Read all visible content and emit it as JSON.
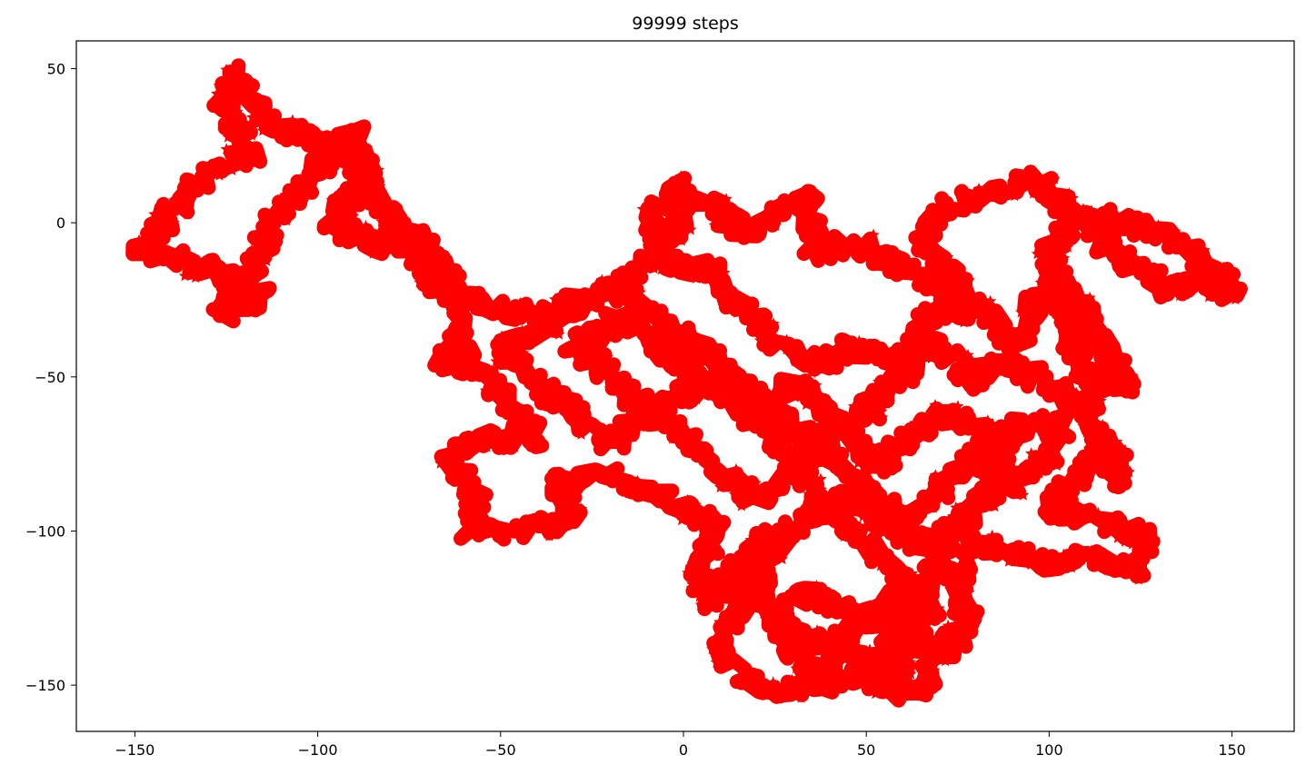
{
  "chart_data": {
    "type": "scatter",
    "title": "99999 steps",
    "xlabel": "",
    "ylabel": "",
    "xlim": [
      -166,
      167
    ],
    "ylim": [
      -165,
      59
    ],
    "xticks": [
      -150,
      -100,
      -50,
      0,
      50,
      100,
      150
    ],
    "yticks": [
      50,
      0,
      -50,
      -100,
      -150
    ],
    "xtick_labels": [
      "−150",
      "−100",
      "−50",
      "0",
      "50",
      "100",
      "150"
    ],
    "ytick_labels": [
      "50",
      "0",
      "−50",
      "−100",
      "−150"
    ],
    "marker": "*",
    "color": "#ff0000",
    "grid": false,
    "legend": "none",
    "series": [
      {
        "steps": 99999,
        "start": [
          0,
          0
        ],
        "path_waypoints": [
          [
            0,
            0
          ],
          [
            -10,
            -12
          ],
          [
            -22,
            -25
          ],
          [
            -38,
            -30
          ],
          [
            -52,
            -28
          ],
          [
            -66,
            -22
          ],
          [
            -74,
            -10
          ],
          [
            -82,
            6
          ],
          [
            -90,
            20
          ],
          [
            -100,
            28
          ],
          [
            -110,
            30
          ],
          [
            -116,
            38
          ],
          [
            -124,
            48
          ],
          [
            -126,
            36
          ],
          [
            -118,
            22
          ],
          [
            -130,
            18
          ],
          [
            -136,
            8
          ],
          [
            -148,
            -8
          ],
          [
            -136,
            -12
          ],
          [
            -124,
            -18
          ],
          [
            -116,
            -24
          ],
          [
            -126,
            -30
          ],
          [
            -120,
            -20
          ],
          [
            -110,
            4
          ],
          [
            -100,
            18
          ],
          [
            -90,
            30
          ],
          [
            -86,
            14
          ],
          [
            -96,
            0
          ],
          [
            -84,
            -8
          ],
          [
            -74,
            -2
          ],
          [
            -64,
            -18
          ],
          [
            -60,
            -40
          ],
          [
            -66,
            -44
          ],
          [
            -54,
            -48
          ],
          [
            -48,
            -60
          ],
          [
            -40,
            -70
          ],
          [
            -58,
            -70
          ],
          [
            -64,
            -78
          ],
          [
            -56,
            -88
          ],
          [
            -58,
            -100
          ],
          [
            -44,
            -100
          ],
          [
            -30,
            -96
          ],
          [
            -34,
            -84
          ],
          [
            -20,
            -82
          ],
          [
            -10,
            -86
          ],
          [
            -2,
            -92
          ],
          [
            10,
            -98
          ],
          [
            4,
            -112
          ],
          [
            8,
            -124
          ],
          [
            16,
            -110
          ],
          [
            24,
            -100
          ],
          [
            10,
            -140
          ],
          [
            20,
            -152
          ],
          [
            34,
            -150
          ],
          [
            44,
            -138
          ],
          [
            54,
            -150
          ],
          [
            62,
            -154
          ],
          [
            70,
            -140
          ],
          [
            78,
            -130
          ],
          [
            74,
            -116
          ],
          [
            80,
            -104
          ],
          [
            92,
            -106
          ],
          [
            102,
            -112
          ],
          [
            112,
            -108
          ],
          [
            124,
            -112
          ],
          [
            126,
            -102
          ],
          [
            112,
            -96
          ],
          [
            100,
            -92
          ],
          [
            110,
            -80
          ],
          [
            118,
            -72
          ],
          [
            120,
            -86
          ],
          [
            110,
            -60
          ],
          [
            96,
            -50
          ],
          [
            86,
            -44
          ],
          [
            80,
            -52
          ],
          [
            70,
            -40
          ],
          [
            58,
            -44
          ],
          [
            46,
            -40
          ],
          [
            38,
            -46
          ],
          [
            26,
            -40
          ],
          [
            18,
            -30
          ],
          [
            8,
            -16
          ],
          [
            -6,
            -12
          ],
          [
            -8,
            2
          ],
          [
            -2,
            12
          ],
          [
            2,
            8
          ],
          [
            10,
            4
          ],
          [
            18,
            -4
          ],
          [
            26,
            4
          ],
          [
            34,
            8
          ],
          [
            36,
            -10
          ],
          [
            46,
            -6
          ],
          [
            56,
            -12
          ],
          [
            66,
            -18
          ],
          [
            76,
            -30
          ],
          [
            74,
            -18
          ],
          [
            66,
            -6
          ],
          [
            70,
            4
          ],
          [
            78,
            8
          ],
          [
            88,
            10
          ],
          [
            96,
            14
          ],
          [
            104,
            6
          ],
          [
            112,
            -2
          ],
          [
            118,
            -10
          ],
          [
            124,
            -14
          ],
          [
            132,
            -22
          ],
          [
            142,
            -18
          ],
          [
            150,
            -22
          ],
          [
            140,
            -10
          ],
          [
            128,
            -2
          ],
          [
            118,
            0
          ],
          [
            108,
            4
          ],
          [
            100,
            -10
          ],
          [
            104,
            -30
          ],
          [
            108,
            -44
          ],
          [
            112,
            -56
          ],
          [
            118,
            -50
          ],
          [
            122,
            -54
          ],
          [
            110,
            -30
          ],
          [
            104,
            -18
          ],
          [
            96,
            -26
          ],
          [
            92,
            -40
          ],
          [
            84,
            -30
          ],
          [
            76,
            -24
          ],
          [
            66,
            -30
          ],
          [
            60,
            -50
          ],
          [
            50,
            -62
          ],
          [
            40,
            -70
          ],
          [
            30,
            -80
          ],
          [
            20,
            -90
          ],
          [
            10,
            -80
          ],
          [
            0,
            -70
          ],
          [
            -10,
            -60
          ],
          [
            -20,
            -50
          ],
          [
            -30,
            -40
          ],
          [
            -16,
            -30
          ],
          [
            -4,
            -42
          ],
          [
            6,
            -52
          ],
          [
            16,
            -60
          ],
          [
            26,
            -70
          ],
          [
            36,
            -90
          ],
          [
            46,
            -100
          ],
          [
            56,
            -110
          ],
          [
            66,
            -120
          ],
          [
            56,
            -130
          ],
          [
            44,
            -126
          ],
          [
            34,
            -120
          ],
          [
            26,
            -126
          ],
          [
            30,
            -140
          ],
          [
            40,
            -150
          ],
          [
            52,
            -144
          ],
          [
            60,
            -130
          ],
          [
            70,
            -110
          ],
          [
            76,
            -94
          ],
          [
            90,
            -84
          ],
          [
            100,
            -76
          ],
          [
            104,
            -64
          ],
          [
            92,
            -66
          ],
          [
            80,
            -76
          ],
          [
            70,
            -86
          ],
          [
            60,
            -96
          ],
          [
            50,
            -86
          ],
          [
            40,
            -76
          ],
          [
            30,
            -66
          ],
          [
            20,
            -56
          ],
          [
            10,
            -46
          ],
          [
            0,
            -36
          ],
          [
            -10,
            -28
          ],
          [
            -20,
            -22
          ],
          [
            -30,
            -26
          ],
          [
            -40,
            -36
          ],
          [
            -50,
            -42
          ],
          [
            -40,
            -52
          ],
          [
            -30,
            -62
          ],
          [
            -20,
            -72
          ],
          [
            -12,
            -62
          ],
          [
            -2,
            -56
          ],
          [
            12,
            -50
          ],
          [
            24,
            -60
          ],
          [
            30,
            -52
          ],
          [
            38,
            -58
          ],
          [
            46,
            -70
          ],
          [
            54,
            -80
          ],
          [
            62,
            -70
          ],
          [
            70,
            -62
          ],
          [
            80,
            -66
          ],
          [
            88,
            -74
          ],
          [
            84,
            -88
          ],
          [
            74,
            -98
          ],
          [
            64,
            -104
          ],
          [
            54,
            -96
          ],
          [
            44,
            -88
          ],
          [
            34,
            -96
          ],
          [
            24,
            -108
          ],
          [
            20,
            -120
          ],
          [
            28,
            -132
          ],
          [
            38,
            -138
          ],
          [
            48,
            -130
          ],
          [
            58,
            -120
          ],
          [
            68,
            -126
          ],
          [
            62,
            -140
          ],
          [
            58,
            -152
          ]
        ]
      }
    ]
  }
}
